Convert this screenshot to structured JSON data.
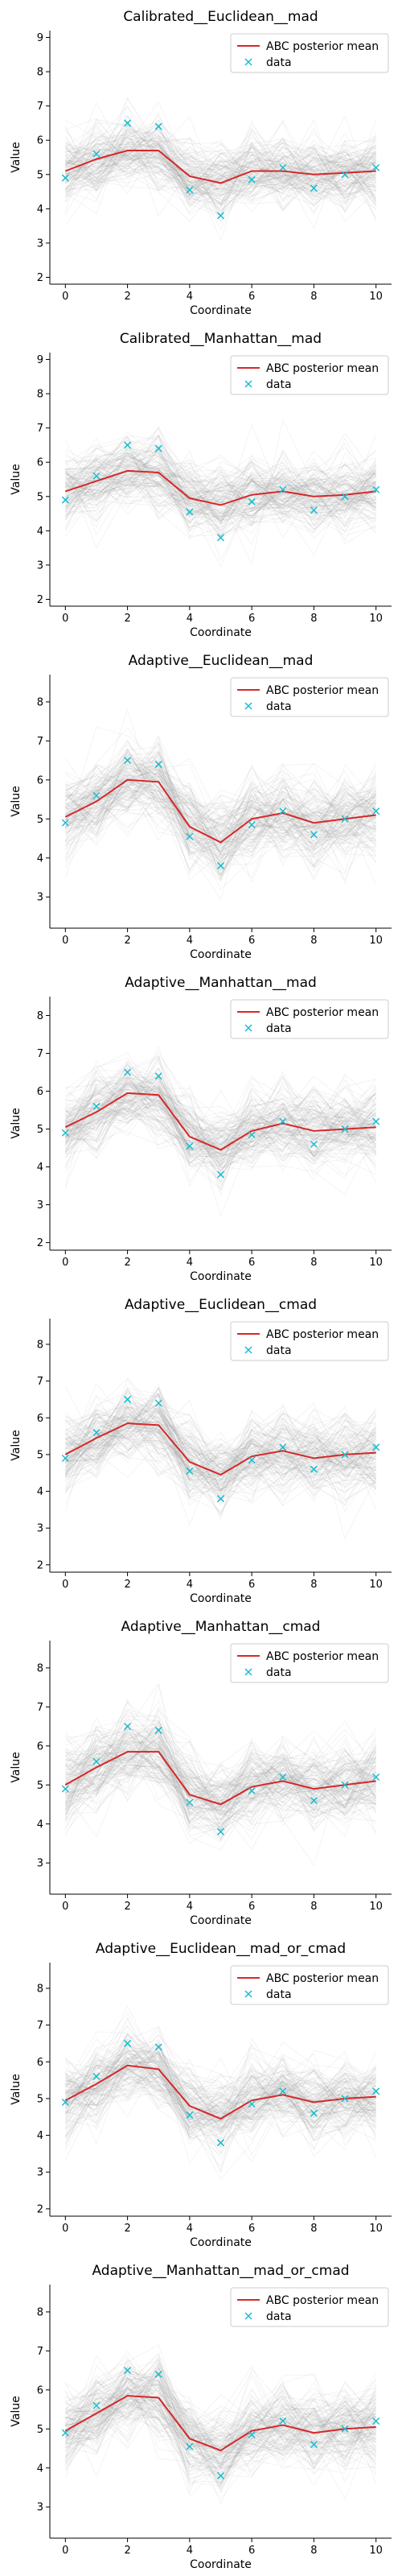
{
  "chart_data": [
    {
      "type": "line",
      "title": "Calibrated__Euclidean__mad",
      "xlabel": "Coordinate",
      "ylabel": "Value",
      "xlim": [
        -0.5,
        10.5
      ],
      "ylim": [
        1.8,
        9.2
      ],
      "xticks": [
        0,
        2,
        4,
        6,
        8,
        10
      ],
      "yticks": [
        2,
        3,
        4,
        5,
        6,
        7,
        8,
        9
      ],
      "legend_position": "top-right",
      "series": [
        {
          "name": "ABC posterior mean",
          "color": "#d62728",
          "x": [
            0,
            1,
            2,
            3,
            4,
            5,
            6,
            7,
            8,
            9,
            10
          ],
          "values": [
            5.1,
            5.45,
            5.7,
            5.7,
            4.95,
            4.75,
            5.1,
            5.1,
            5.0,
            5.05,
            5.1
          ]
        },
        {
          "name": "data",
          "color": "#17becf",
          "marker": "x",
          "x": [
            0,
            1,
            2,
            3,
            4,
            5,
            6,
            7,
            8,
            9,
            10
          ],
          "values": [
            4.9,
            5.6,
            6.5,
            6.4,
            4.55,
            3.8,
            4.85,
            5.2,
            4.6,
            5.0,
            5.2
          ]
        }
      ]
    },
    {
      "type": "line",
      "title": "Calibrated__Manhattan__mad",
      "xlabel": "Coordinate",
      "ylabel": "Value",
      "xlim": [
        -0.5,
        10.5
      ],
      "ylim": [
        1.8,
        9.2
      ],
      "xticks": [
        0,
        2,
        4,
        6,
        8,
        10
      ],
      "yticks": [
        2,
        3,
        4,
        5,
        6,
        7,
        8,
        9
      ],
      "legend_position": "top-right",
      "series": [
        {
          "name": "ABC posterior mean",
          "color": "#d62728",
          "x": [
            0,
            1,
            2,
            3,
            4,
            5,
            6,
            7,
            8,
            9,
            10
          ],
          "values": [
            5.15,
            5.45,
            5.75,
            5.7,
            4.95,
            4.75,
            5.05,
            5.15,
            5.0,
            5.05,
            5.15
          ]
        },
        {
          "name": "data",
          "color": "#17becf",
          "marker": "x",
          "x": [
            0,
            1,
            2,
            3,
            4,
            5,
            6,
            7,
            8,
            9,
            10
          ],
          "values": [
            4.9,
            5.6,
            6.5,
            6.4,
            4.55,
            3.8,
            4.85,
            5.2,
            4.6,
            5.0,
            5.2
          ]
        }
      ]
    },
    {
      "type": "line",
      "title": "Adaptive__Euclidean__mad",
      "xlabel": "Coordinate",
      "ylabel": "Value",
      "xlim": [
        -0.5,
        10.5
      ],
      "ylim": [
        2.2,
        8.7
      ],
      "xticks": [
        0,
        2,
        4,
        6,
        8,
        10
      ],
      "yticks": [
        3,
        4,
        5,
        6,
        7,
        8
      ],
      "legend_position": "top-right",
      "series": [
        {
          "name": "ABC posterior mean",
          "color": "#d62728",
          "x": [
            0,
            1,
            2,
            3,
            4,
            5,
            6,
            7,
            8,
            9,
            10
          ],
          "values": [
            5.05,
            5.45,
            6.0,
            5.95,
            4.8,
            4.4,
            5.0,
            5.15,
            4.9,
            5.0,
            5.1
          ]
        },
        {
          "name": "data",
          "color": "#17becf",
          "marker": "x",
          "x": [
            0,
            1,
            2,
            3,
            4,
            5,
            6,
            7,
            8,
            9,
            10
          ],
          "values": [
            4.9,
            5.6,
            6.5,
            6.4,
            4.55,
            3.8,
            4.85,
            5.2,
            4.6,
            5.0,
            5.2
          ]
        }
      ]
    },
    {
      "type": "line",
      "title": "Adaptive__Manhattan__mad",
      "xlabel": "Coordinate",
      "ylabel": "Value",
      "xlim": [
        -0.5,
        10.5
      ],
      "ylim": [
        1.8,
        8.5
      ],
      "xticks": [
        0,
        2,
        4,
        6,
        8,
        10
      ],
      "yticks": [
        2,
        3,
        4,
        5,
        6,
        7,
        8
      ],
      "legend_position": "top-right",
      "series": [
        {
          "name": "ABC posterior mean",
          "color": "#d62728",
          "x": [
            0,
            1,
            2,
            3,
            4,
            5,
            6,
            7,
            8,
            9,
            10
          ],
          "values": [
            5.05,
            5.45,
            5.95,
            5.9,
            4.8,
            4.45,
            4.95,
            5.15,
            4.95,
            5.0,
            5.05
          ]
        },
        {
          "name": "data",
          "color": "#17becf",
          "marker": "x",
          "x": [
            0,
            1,
            2,
            3,
            4,
            5,
            6,
            7,
            8,
            9,
            10
          ],
          "values": [
            4.9,
            5.6,
            6.5,
            6.4,
            4.55,
            3.8,
            4.85,
            5.2,
            4.6,
            5.0,
            5.2
          ]
        }
      ]
    },
    {
      "type": "line",
      "title": "Adaptive__Euclidean__cmad",
      "xlabel": "Coordinate",
      "ylabel": "Value",
      "xlim": [
        -0.5,
        10.5
      ],
      "ylim": [
        1.8,
        8.7
      ],
      "xticks": [
        0,
        2,
        4,
        6,
        8,
        10
      ],
      "yticks": [
        2,
        3,
        4,
        5,
        6,
        7,
        8
      ],
      "legend_position": "top-right",
      "series": [
        {
          "name": "ABC posterior mean",
          "color": "#d62728",
          "x": [
            0,
            1,
            2,
            3,
            4,
            5,
            6,
            7,
            8,
            9,
            10
          ],
          "values": [
            5.0,
            5.45,
            5.85,
            5.8,
            4.8,
            4.45,
            4.95,
            5.1,
            4.9,
            5.0,
            5.05
          ]
        },
        {
          "name": "data",
          "color": "#17becf",
          "marker": "x",
          "x": [
            0,
            1,
            2,
            3,
            4,
            5,
            6,
            7,
            8,
            9,
            10
          ],
          "values": [
            4.9,
            5.6,
            6.5,
            6.4,
            4.55,
            3.8,
            4.85,
            5.2,
            4.6,
            5.0,
            5.2
          ]
        }
      ]
    },
    {
      "type": "line",
      "title": "Adaptive__Manhattan__cmad",
      "xlabel": "Coordinate",
      "ylabel": "Value",
      "xlim": [
        -0.5,
        10.5
      ],
      "ylim": [
        2.2,
        8.7
      ],
      "xticks": [
        0,
        2,
        4,
        6,
        8,
        10
      ],
      "yticks": [
        3,
        4,
        5,
        6,
        7,
        8
      ],
      "legend_position": "top-right",
      "series": [
        {
          "name": "ABC posterior mean",
          "color": "#d62728",
          "x": [
            0,
            1,
            2,
            3,
            4,
            5,
            6,
            7,
            8,
            9,
            10
          ],
          "values": [
            5.0,
            5.45,
            5.85,
            5.85,
            4.75,
            4.5,
            4.95,
            5.1,
            4.9,
            5.0,
            5.1
          ]
        },
        {
          "name": "data",
          "color": "#17becf",
          "marker": "x",
          "x": [
            0,
            1,
            2,
            3,
            4,
            5,
            6,
            7,
            8,
            9,
            10
          ],
          "values": [
            4.9,
            5.6,
            6.5,
            6.4,
            4.55,
            3.8,
            4.85,
            5.2,
            4.6,
            5.0,
            5.2
          ]
        }
      ]
    },
    {
      "type": "line",
      "title": "Adaptive__Euclidean__mad_or_cmad",
      "xlabel": "Coordinate",
      "ylabel": "Value",
      "xlim": [
        -0.5,
        10.5
      ],
      "ylim": [
        1.8,
        8.7
      ],
      "xticks": [
        0,
        2,
        4,
        6,
        8,
        10
      ],
      "yticks": [
        2,
        3,
        4,
        5,
        6,
        7,
        8
      ],
      "legend_position": "top-right",
      "series": [
        {
          "name": "ABC posterior mean",
          "color": "#d62728",
          "x": [
            0,
            1,
            2,
            3,
            4,
            5,
            6,
            7,
            8,
            9,
            10
          ],
          "values": [
            4.95,
            5.4,
            5.9,
            5.8,
            4.8,
            4.45,
            4.95,
            5.1,
            4.9,
            5.0,
            5.05
          ]
        },
        {
          "name": "data",
          "color": "#17becf",
          "marker": "x",
          "x": [
            0,
            1,
            2,
            3,
            4,
            5,
            6,
            7,
            8,
            9,
            10
          ],
          "values": [
            4.9,
            5.6,
            6.5,
            6.4,
            4.55,
            3.8,
            4.85,
            5.2,
            4.6,
            5.0,
            5.2
          ]
        }
      ]
    },
    {
      "type": "line",
      "title": "Adaptive__Manhattan__mad_or_cmad",
      "xlabel": "Coordinate",
      "ylabel": "Value",
      "xlim": [
        -0.5,
        10.5
      ],
      "ylim": [
        2.2,
        8.7
      ],
      "xticks": [
        0,
        2,
        4,
        6,
        8,
        10
      ],
      "yticks": [
        3,
        4,
        5,
        6,
        7,
        8
      ],
      "legend_position": "top-right",
      "series": [
        {
          "name": "ABC posterior mean",
          "color": "#d62728",
          "x": [
            0,
            1,
            2,
            3,
            4,
            5,
            6,
            7,
            8,
            9,
            10
          ],
          "values": [
            4.95,
            5.4,
            5.85,
            5.8,
            4.75,
            4.45,
            4.95,
            5.1,
            4.9,
            5.0,
            5.05
          ]
        },
        {
          "name": "data",
          "color": "#17becf",
          "marker": "x",
          "x": [
            0,
            1,
            2,
            3,
            4,
            5,
            6,
            7,
            8,
            9,
            10
          ],
          "values": [
            4.9,
            5.6,
            6.5,
            6.4,
            4.55,
            3.8,
            4.85,
            5.2,
            4.6,
            5.0,
            5.2
          ]
        }
      ]
    }
  ]
}
